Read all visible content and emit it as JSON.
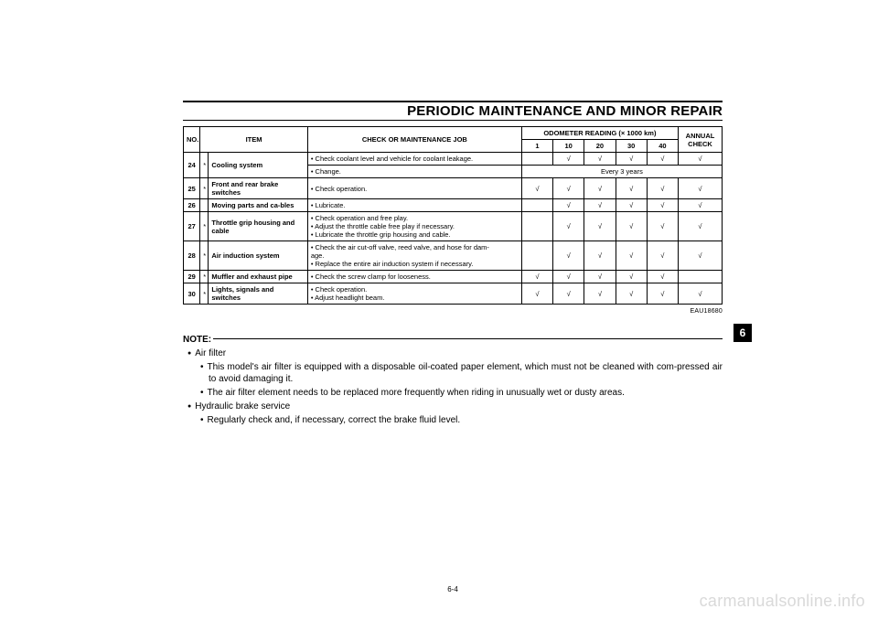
{
  "title": "PERIODIC MAINTENANCE AND MINOR REPAIR",
  "code": "EAU18680",
  "page_number": "6-4",
  "section_tab": "6",
  "watermark": "carmanualsonline.info",
  "table": {
    "headers": {
      "no": "NO.",
      "item": "ITEM",
      "job": "CHECK OR MAINTENANCE JOB",
      "odo": "ODOMETER READING (× 1000 km)",
      "annual": "ANNUAL CHECK",
      "cols": [
        "1",
        "10",
        "20",
        "30",
        "40"
      ]
    },
    "every3": "Every 3 years",
    "rows": [
      {
        "no": "24",
        "star": "*",
        "item": "Cooling system",
        "job_a": "• Check coolant level and vehicle for coolant leakage.",
        "checks_a": [
          "",
          "√",
          "√",
          "√",
          "√"
        ],
        "annual_a": "√",
        "job_b": "• Change."
      },
      {
        "no": "25",
        "star": "*",
        "item": "Front and rear brake switches",
        "job": "• Check operation.",
        "checks": [
          "√",
          "√",
          "√",
          "√",
          "√"
        ],
        "annual": "√"
      },
      {
        "no": "26",
        "star": "",
        "item": "Moving parts and ca-bles",
        "job": "• Lubricate.",
        "checks": [
          "",
          "√",
          "√",
          "√",
          "√"
        ],
        "annual": "√"
      },
      {
        "no": "27",
        "star": "*",
        "item": "Throttle grip housing and cable",
        "job": "• Check operation and free play.\n• Adjust the throttle cable free play if necessary.\n• Lubricate the throttle grip housing and cable.",
        "checks": [
          "",
          "√",
          "√",
          "√",
          "√"
        ],
        "annual": "√"
      },
      {
        "no": "28",
        "star": "*",
        "item": "Air induction system",
        "job": "• Check the air cut-off valve, reed valve, and hose for dam-\n  age.\n• Replace the entire air induction system if necessary.",
        "checks": [
          "",
          "√",
          "√",
          "√",
          "√"
        ],
        "annual": "√"
      },
      {
        "no": "29",
        "star": "*",
        "item": "Muffler and exhaust pipe",
        "job": "• Check the screw clamp for looseness.",
        "checks": [
          "√",
          "√",
          "√",
          "√",
          "√"
        ],
        "annual": ""
      },
      {
        "no": "30",
        "star": "*",
        "item": "Lights, signals and switches",
        "job": "• Check operation.\n• Adjust headlight beam.",
        "checks": [
          "√",
          "√",
          "√",
          "√",
          "√"
        ],
        "annual": "√"
      }
    ]
  },
  "note_label": "NOTE:",
  "notes": {
    "l1a": "Air filter",
    "l2a": "This model's air filter is equipped with a disposable oil-coated paper element, which must not be cleaned with com-pressed air to avoid damaging it.",
    "l2b": "The air filter element needs to be replaced more frequently when riding in unusually wet or dusty areas.",
    "l1b": "Hydraulic brake service",
    "l2c": "Regularly check and, if necessary, correct the brake fluid level."
  }
}
